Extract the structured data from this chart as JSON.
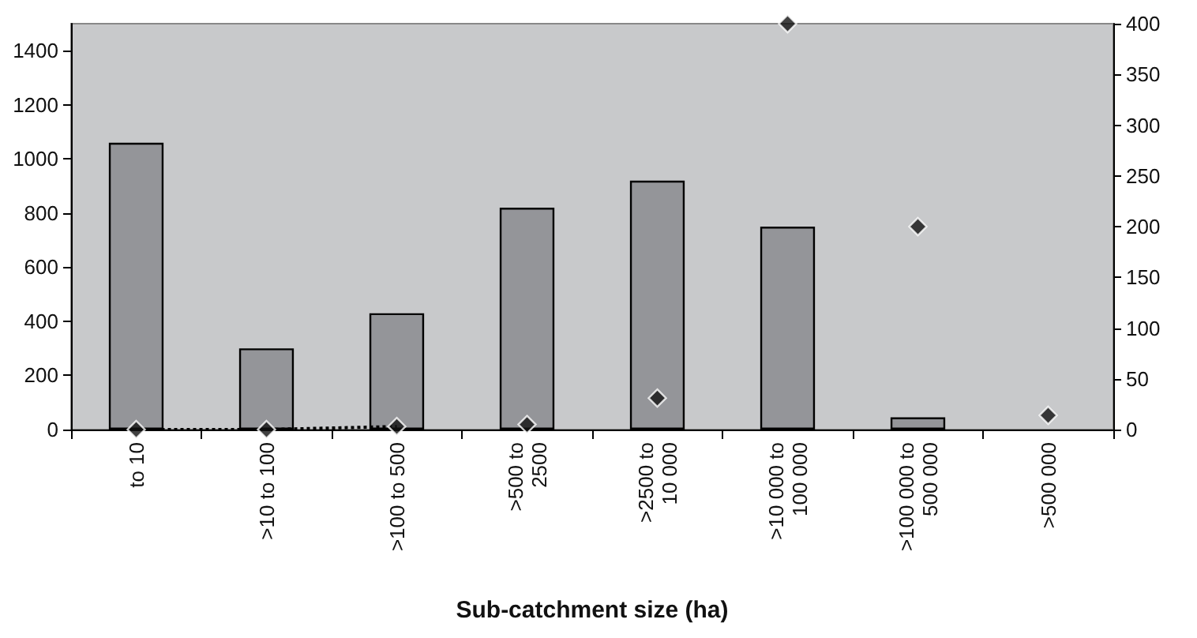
{
  "chart_data": {
    "type": "bar",
    "xlabel": "Sub-catchment size (ha)",
    "categories": [
      "to 10",
      ">10 to 100",
      ">100 to 500",
      ">500 to 2500",
      ">2500 to 10 000",
      ">10 000 to 100 000",
      ">100 000 to 500 000",
      ">500 000"
    ],
    "series": [
      {
        "color": "#949599",
        "values": [
          1060,
          300,
          430,
          820,
          920,
          750,
          45,
          0
        ]
      },
      {
        "type": "line",
        "axis": "y2",
        "color": "#000000",
        "line_style": "dotted",
        "marker": "none",
        "values": [
          0,
          0,
          3,
          null,
          null,
          null,
          null,
          null
        ]
      },
      {
        "type": "scatter",
        "axis": "y2",
        "color": "#111111",
        "marker": "diamond",
        "values": [
          0,
          0,
          3,
          5,
          31,
          400,
          200,
          14
        ]
      }
    ],
    "ylim": [
      0,
      1500
    ],
    "yticks": [
      0,
      200,
      400,
      600,
      800,
      1000,
      1200,
      1400
    ],
    "y2lim": [
      0,
      400
    ],
    "y2ticks": [
      0,
      50,
      100,
      150,
      200,
      250,
      300,
      350,
      400
    ],
    "grid": false
  }
}
